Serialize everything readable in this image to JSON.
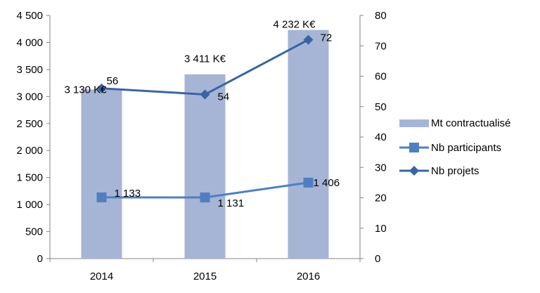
{
  "chart_data": {
    "type": "bar",
    "categories": [
      "2014",
      "2015",
      "2016"
    ],
    "series": [
      {
        "name": "Mt contractualisé",
        "type": "bar",
        "axis": "left",
        "values": [
          3130,
          3411,
          4232
        ],
        "labels": [
          "3 130 K€",
          "3 411 K€",
          "4 232 K€"
        ],
        "color": "#a6b5d6"
      },
      {
        "name": "Nb participants",
        "type": "line",
        "marker": "square",
        "axis": "left",
        "values": [
          1133,
          1131,
          1406
        ],
        "labels": [
          "1 133",
          "1 131",
          "1 406"
        ],
        "color": "#4f7fc0"
      },
      {
        "name": "Nb projets",
        "type": "line",
        "marker": "diamond",
        "axis": "right",
        "values": [
          56,
          54,
          72
        ],
        "labels": [
          "56",
          "54",
          "72"
        ],
        "color": "#3a64a3"
      }
    ],
    "left_axis": {
      "ylim": [
        0,
        4500
      ],
      "ticks": [
        0,
        500,
        1000,
        1500,
        2000,
        2500,
        3000,
        3500,
        4000,
        4500
      ],
      "tick_labels": [
        "0",
        "500",
        "1 000",
        "1 500",
        "2 000",
        "2 500",
        "3 000",
        "3 500",
        "4 000",
        "4 500"
      ]
    },
    "right_axis": {
      "ylim": [
        0,
        80
      ],
      "ticks": [
        0,
        10,
        20,
        30,
        40,
        50,
        60,
        70,
        80
      ],
      "tick_labels": [
        "0",
        "10",
        "20",
        "30",
        "40",
        "50",
        "60",
        "70",
        "80"
      ]
    },
    "grid": false,
    "legend_position": "right"
  }
}
